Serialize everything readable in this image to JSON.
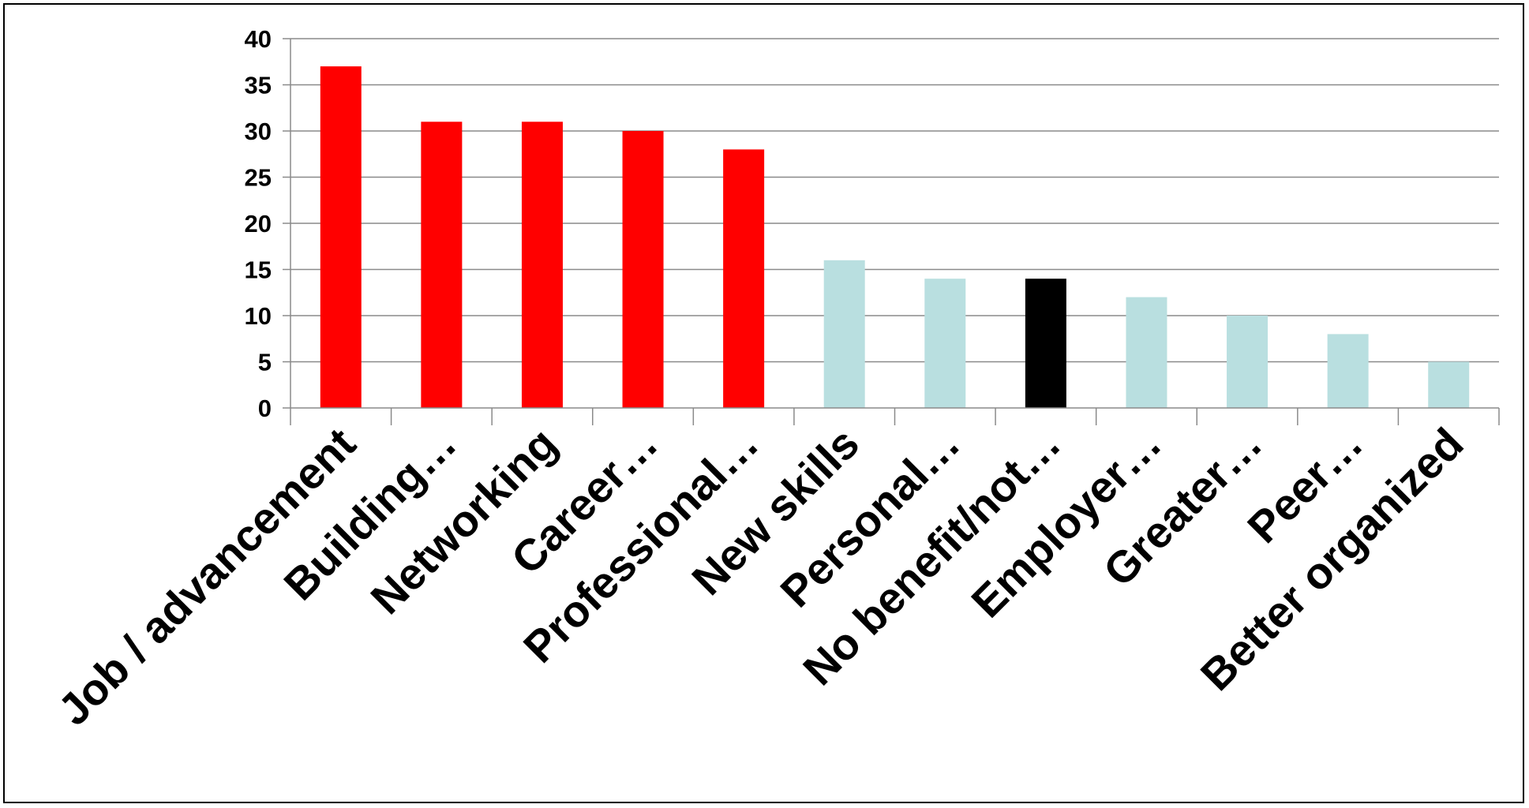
{
  "chart_data": {
    "type": "bar",
    "title": "",
    "xlabel": "",
    "ylabel": "",
    "categories": [
      "Job / advancement",
      "Building…",
      "Networking",
      "Career…",
      "Professional…",
      "New skills",
      "Personal…",
      "No benefit/not…",
      "Employer…",
      "Greater…",
      "Peer…",
      "Better organized"
    ],
    "values": [
      37,
      31,
      31,
      30,
      28,
      16,
      14,
      14,
      12,
      10,
      8,
      5
    ],
    "bar_colors": [
      "#ff0000",
      "#ff0000",
      "#ff0000",
      "#ff0000",
      "#ff0000",
      "#b9dfe0",
      "#b9dfe0",
      "#000000",
      "#b9dfe0",
      "#b9dfe0",
      "#b9dfe0",
      "#b9dfe0"
    ],
    "ylim": [
      0,
      40
    ],
    "yticks": [
      0,
      5,
      10,
      15,
      20,
      25,
      30,
      35,
      40
    ],
    "grid": true,
    "legend": "none"
  }
}
